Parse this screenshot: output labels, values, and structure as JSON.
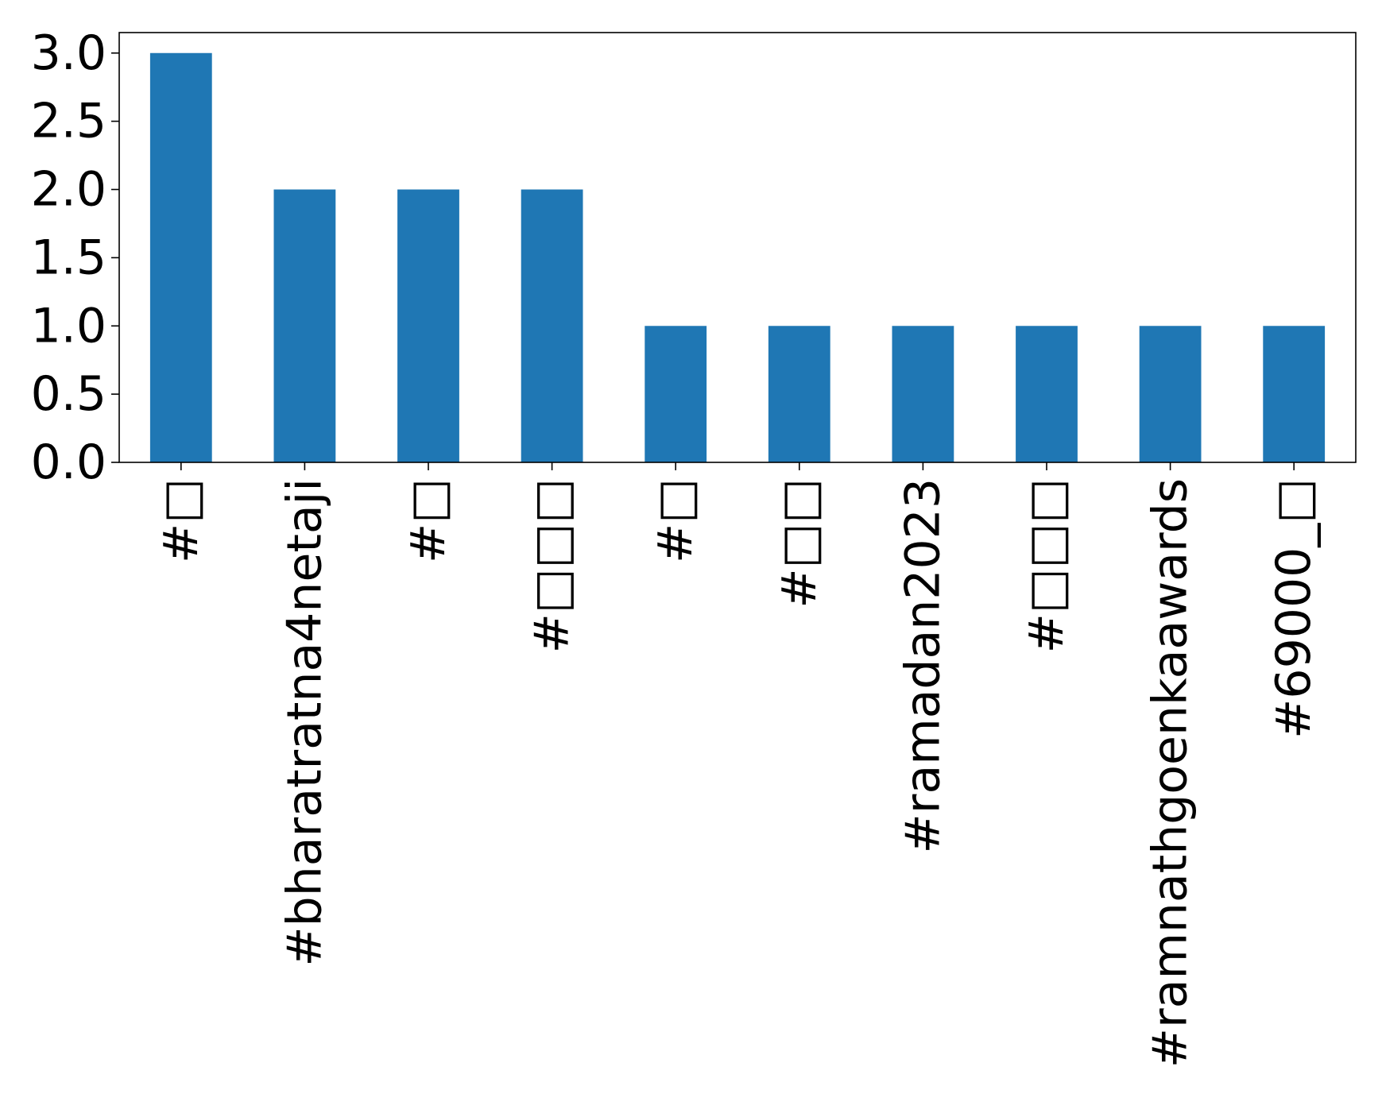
{
  "chart_data": {
    "type": "bar",
    "categories": [
      "#□",
      "#bharatratna4netaji",
      "#□",
      "#□□□",
      "#□",
      "#□□",
      "#ramadan2023",
      "#□□□",
      "#ramnathgoenkaawards",
      "#69000_□"
    ],
    "values": [
      3,
      2,
      2,
      2,
      1,
      1,
      1,
      1,
      1,
      1
    ],
    "title": "",
    "xlabel": "",
    "ylabel": "",
    "ylim": [
      0,
      3.15
    ],
    "yticks": [
      "0.0",
      "0.5",
      "1.0",
      "1.5",
      "2.0",
      "2.5",
      "3.0"
    ],
    "ytick_values": [
      0,
      0.5,
      1.0,
      1.5,
      2.0,
      2.5,
      3.0
    ],
    "grid": false,
    "legend": "none",
    "bar_color": "#1f77b4"
  }
}
